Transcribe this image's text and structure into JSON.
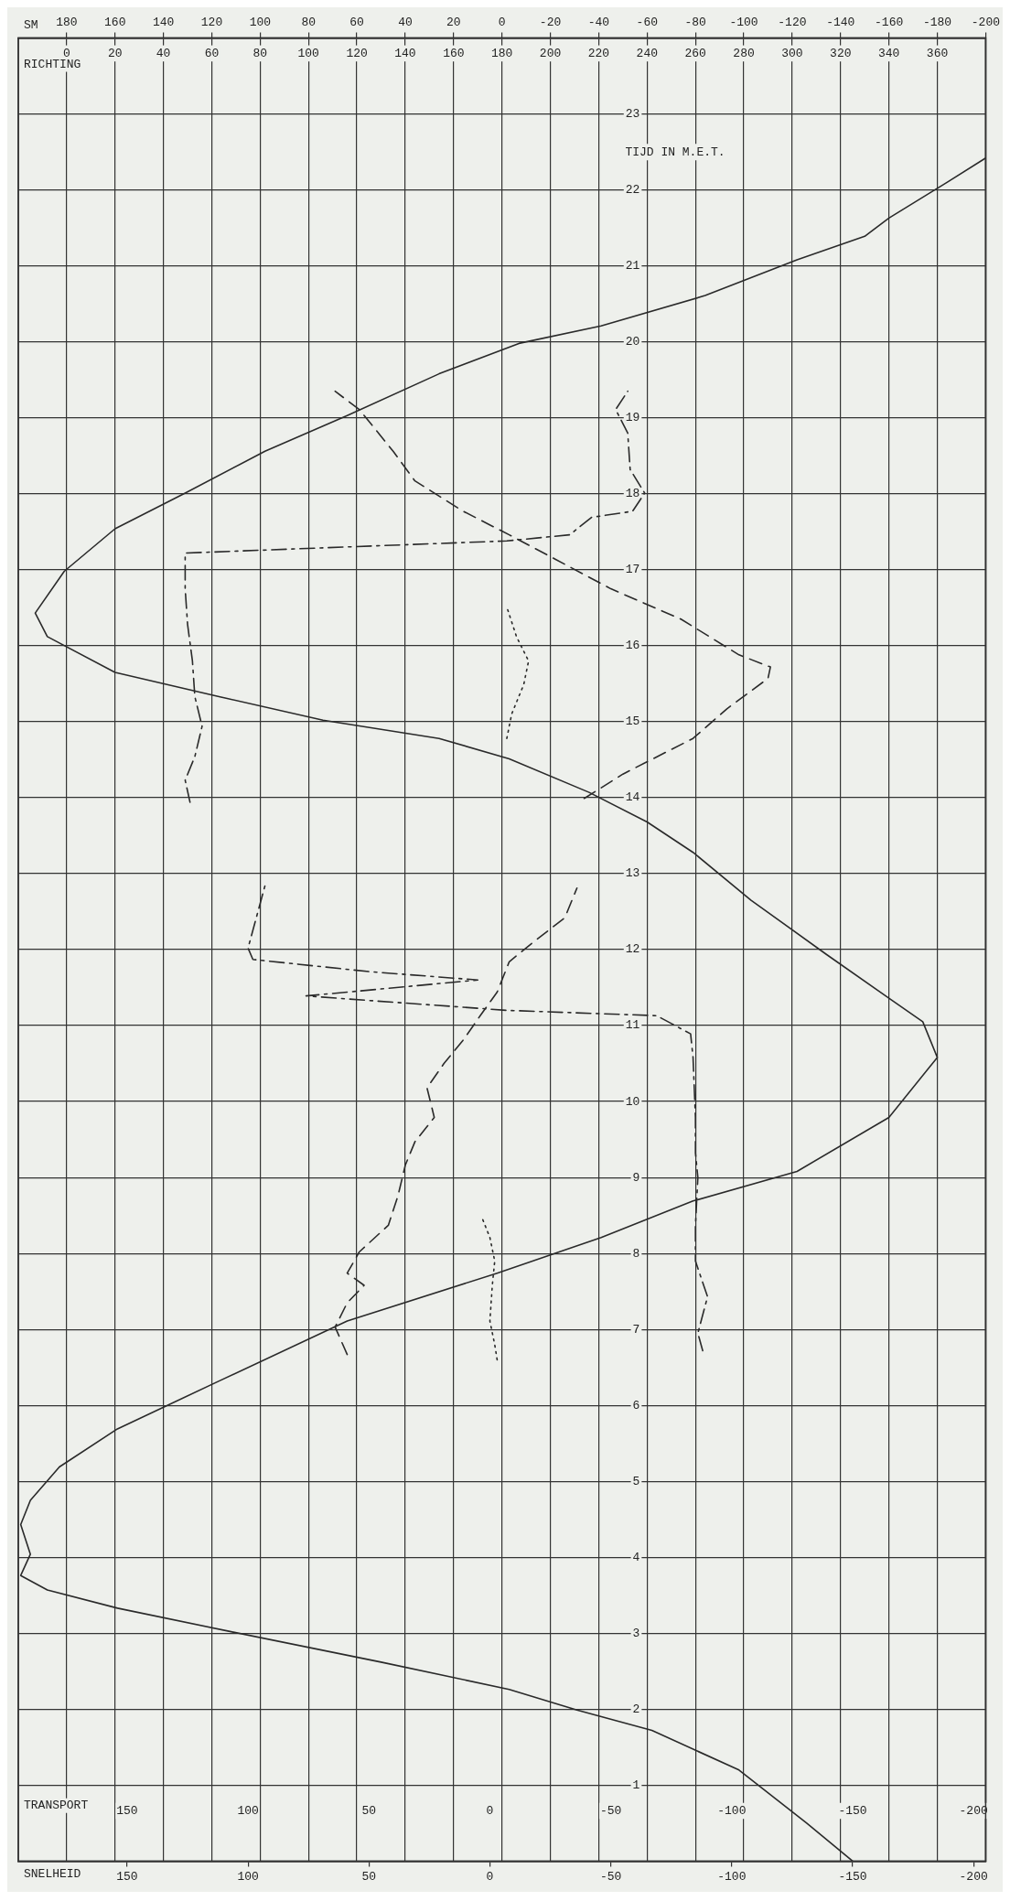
{
  "chart_data": [
    {
      "type": "line",
      "orientation": "horizontal",
      "xlabel": "SNELHEID",
      "x2label": "SM",
      "ylabel": "TIJD IN M.E.T.",
      "xlim": [
        195,
        -205
      ],
      "xticks": [
        150,
        100,
        50,
        0,
        -50,
        -100,
        -150,
        -200
      ],
      "x2lim": [
        200,
        -200
      ],
      "x2ticks": [
        180,
        160,
        140,
        120,
        100,
        80,
        60,
        40,
        20,
        0,
        -20,
        -40,
        -60,
        -80,
        -100,
        -120,
        -140,
        -160,
        -180,
        -200
      ],
      "ylim": [
        0,
        24
      ],
      "yticks": [
        {
          "value": 0,
          "label": null
        },
        1,
        2,
        3,
        4,
        5,
        6,
        7,
        8,
        9,
        10,
        11,
        12,
        13,
        14,
        15,
        16,
        17,
        18,
        19,
        20,
        21,
        22,
        23,
        {
          "value": 24,
          "label": null
        }
      ],
      "grid": true,
      "series": [
        {
          "color": "#2a2a2a",
          "line_style": "solid",
          "x": [
            0,
            0.5,
            1.2,
            1.72,
            1.99,
            2.26,
            2.62,
            3.02,
            3.33,
            3.57,
            3.76,
            4.04,
            4.43,
            4.75,
            5.19,
            5.69,
            6.32,
            7.11,
            7.74,
            8.21,
            8.69,
            9.08,
            9.79,
            10.58,
            11.05,
            11.36,
            11.94,
            12.65,
            13.28,
            13.68,
            14.07,
            14.51,
            14.78,
            15.02,
            15.33,
            15.65,
            16.12,
            16.43,
            16.98,
            17.54,
            18.01,
            18.56,
            19.03,
            19.58,
            19.98,
            20.21,
            20.61,
            21.08,
            21.39,
            21.63,
            22.1,
            22.42
          ],
          "values": [
            -150,
            -131,
            -103,
            -67,
            -36,
            -8,
            45,
            107,
            154,
            183,
            194,
            190,
            194,
            190,
            178,
            154,
            112,
            59,
            -3,
            -46,
            -84,
            -127,
            -165,
            -185,
            -179,
            -165,
            -139,
            -108,
            -84,
            -65,
            -41,
            -8,
            21,
            69,
            112,
            155,
            183,
            188,
            176,
            155,
            126,
            93,
            59,
            21,
            -12,
            -46,
            -89,
            -127,
            -155,
            -165,
            -189,
            -205
          ]
        },
        {
          "color": "#2a2a2a",
          "line_style": "dotted",
          "axis": "x2",
          "x": [
            6.6,
            6.8,
            7.11,
            7.58,
            7.9,
            8.21,
            8.45,
            11,
            14.78,
            15.1,
            15.49,
            15.8,
            16.12,
            16.51
          ],
          "values": [
            2,
            3,
            5,
            4,
            3,
            5,
            8,
            null,
            -2,
            -4,
            -9,
            -11,
            -6,
            -2
          ]
        }
      ]
    },
    {
      "type": "line",
      "orientation": "horizontal",
      "xlabel": "TRANSPORT",
      "x2label": "RICHTING",
      "xlim": [
        195,
        -205
      ],
      "xticks": [
        150,
        100,
        50,
        0,
        -50,
        -100,
        -150,
        -200
      ],
      "x2lim": [
        -20,
        380
      ],
      "x2ticks": [
        0,
        20,
        40,
        60,
        80,
        100,
        120,
        140,
        160,
        180,
        200,
        220,
        240,
        260,
        280,
        300,
        320,
        340,
        360
      ],
      "ylim": [
        0,
        24
      ],
      "tick_labels": "x",
      "series": [
        {
          "color": "#2a2a2a",
          "line_style": "dashed",
          "x": [
            6.67,
            7.03,
            7.35,
            7.58,
            7.74,
            8.02,
            8.37,
            8.76,
            9.16,
            9.47,
            9.79,
            10.18,
            10.5,
            10.81,
            11.13,
            11.44,
            11.84,
            12.1,
            12.42,
            12.81,
            13.4,
            13.99,
            14.31,
            14.78,
            15.17,
            15.57,
            15.72,
            15.88,
            16.35,
            16.75,
            17.14,
            17.46,
            17.77,
            18.17,
            18.56,
            19.11,
            19.35
          ],
          "values": [
            59,
            64,
            59,
            52,
            59,
            54,
            42,
            38,
            35,
            31,
            23,
            26,
            19,
            11,
            4,
            -3,
            -8,
            -18,
            -31,
            -36,
            null,
            -39,
            -55,
            -84,
            -98,
            -115,
            -116,
            -103,
            -79,
            -50,
            -27,
            -8,
            11,
            31,
            40,
            54,
            64
          ]
        },
        {
          "color": "#2a2a2a",
          "line_style": "dashdot",
          "axis": "x2",
          "x": [
            6.72,
            6.95,
            7.43,
            7.9,
            8.37,
            9.0,
            9.32,
            9.79,
            10.58,
            10.89,
            11.13,
            11.2,
            11.33,
            11.39,
            11.6,
            11.71,
            11.87,
            12.02,
            12.84,
            13.4,
            13.94,
            14.23,
            14.54,
            14.94,
            15.33,
            15.8,
            16.28,
            16.75,
            17.22,
            17.38,
            17.46,
            17.69,
            17.77,
            18.01,
            18.32,
            18.8,
            19.11,
            19.35
          ],
          "values": [
            263,
            261,
            265,
            260,
            260,
            261,
            260,
            260,
            259,
            258,
            244,
            182,
            125,
            99,
            170,
            125,
            77,
            75,
            82,
            null,
            51,
            49,
            53,
            56,
            53,
            52,
            50,
            49,
            49,
            182,
            208,
            217,
            234,
            239,
            233,
            232,
            227,
            232
          ]
        }
      ]
    }
  ]
}
